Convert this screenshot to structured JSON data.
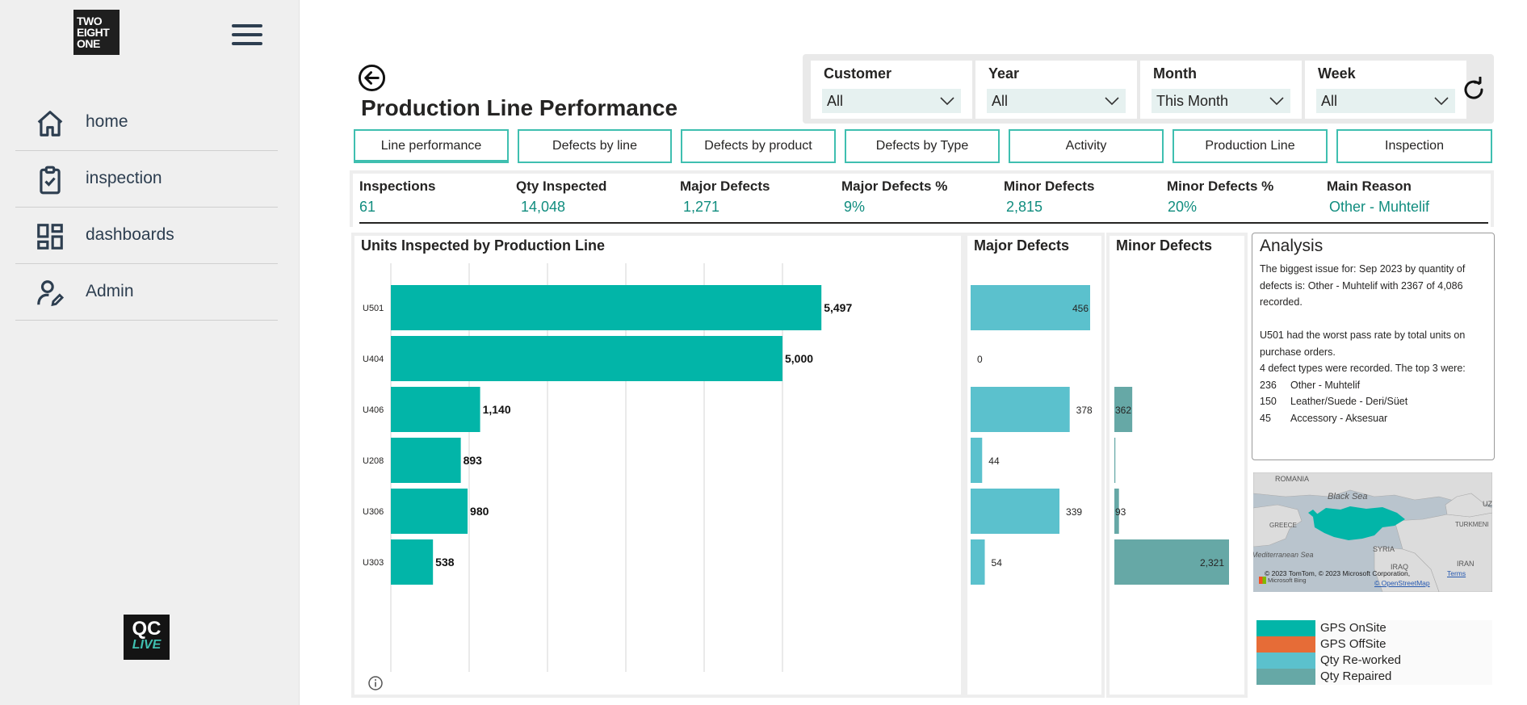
{
  "sidebar": {
    "logo_lines": [
      "TWO",
      "EIGHT",
      "ONE"
    ],
    "items": [
      {
        "label": "home",
        "icon": "home-icon"
      },
      {
        "label": "inspection",
        "icon": "clipboard-check-icon"
      },
      {
        "label": "dashboards",
        "icon": "dashboard-icon"
      },
      {
        "label": "Admin",
        "icon": "user-edit-icon"
      }
    ],
    "bottom_logo": {
      "top": "QC",
      "bottom": "LIVE"
    }
  },
  "header": {
    "title": "Production Line Performance"
  },
  "filters": [
    {
      "label": "Customer",
      "value": "All"
    },
    {
      "label": "Year",
      "value": "All"
    },
    {
      "label": "Month",
      "value": "This Month"
    },
    {
      "label": "Week",
      "value": "All"
    }
  ],
  "tabs": [
    {
      "label": "Line performance",
      "active": true
    },
    {
      "label": "Defects by line",
      "active": false
    },
    {
      "label": "Defects by product",
      "active": false
    },
    {
      "label": "Defects by Type",
      "active": false
    },
    {
      "label": "Activity",
      "active": false
    },
    {
      "label": "Production Line",
      "active": false
    },
    {
      "label": "Inspection",
      "active": false
    }
  ],
  "kpis": [
    {
      "title": "Inspections",
      "value": "61"
    },
    {
      "title": "Qty Inspected",
      "value": "14,048"
    },
    {
      "title": "Major Defects",
      "value": "1,271"
    },
    {
      "title": "Major Defects %",
      "value": "9%"
    },
    {
      "title": "Minor Defects",
      "value": "2,815"
    },
    {
      "title": "Minor Defects %",
      "value": "20%"
    },
    {
      "title": "Main Reason",
      "value": "Other - Muhtelif"
    }
  ],
  "panels": {
    "units_title": "Units Inspected by Production Line",
    "major_title": "Major Defects",
    "minor_title": "Minor Defects"
  },
  "chart_data": [
    {
      "type": "bar",
      "orientation": "horizontal",
      "title": "Units Inspected by Production Line",
      "categories": [
        "U501",
        "U404",
        "U406",
        "U208",
        "U306",
        "U303"
      ],
      "values": [
        5497,
        5000,
        1140,
        893,
        980,
        538
      ],
      "labels": [
        "5,497",
        "5,000",
        "1,140",
        "893",
        "980",
        "538"
      ],
      "xlim": [
        0,
        6000
      ],
      "grid": true,
      "color": "#02b5a8"
    },
    {
      "type": "bar",
      "orientation": "horizontal",
      "title": "Major Defects",
      "categories": [
        "U501",
        "U404",
        "U406",
        "U208",
        "U306",
        "U303"
      ],
      "values": [
        456,
        0,
        378,
        44,
        339,
        54
      ],
      "labels": [
        "456",
        "0",
        "378",
        "44",
        "339",
        "54"
      ],
      "xlim": [
        0,
        456
      ],
      "color": "#5bc1cd"
    },
    {
      "type": "bar",
      "orientation": "horizontal",
      "title": "Minor Defects",
      "categories": [
        "U501",
        "U404",
        "U406",
        "U208",
        "U306",
        "U303"
      ],
      "values": [
        0,
        0,
        362,
        20,
        93,
        2321
      ],
      "labels": [
        "",
        "",
        "362",
        "",
        "93",
        "2,321"
      ],
      "xlim": [
        0,
        2321
      ],
      "color": "#66a8a6"
    }
  ],
  "analysis": {
    "title": "Analysis",
    "lines": [
      "The biggest issue  for: Sep 2023 by quantity of",
      "defects is: Other - Muhtelif with 2367 of 4,086",
      "recorded.",
      "",
      "U501 had the worst pass rate by total units on",
      "purchase orders.",
      "4 defect types were recorded. The top 3 were:"
    ],
    "top": [
      {
        "num": "236",
        "label": "Other - Muhtelif"
      },
      {
        "num": "150",
        "label": "Leather/Suede - Deri/Süet"
      },
      {
        "num": "45",
        "label": "Accessory - Aksesuar"
      }
    ]
  },
  "map": {
    "labels": [
      "ROMANIA",
      "Black Sea",
      "GREECE",
      "SYRIA",
      "Mediterranean Sea",
      "IRAN",
      "TURKMENI",
      "UZ",
      "IRAQ"
    ],
    "attribution": "© 2023 TomTom, © 2023 Microsoft Corporation,",
    "terms": "Terms",
    "bing": "Microsoft Bing",
    "osm": "© OpenStreetMap"
  },
  "legend": [
    {
      "label": "GPS OnSite",
      "color": "#02b5a8"
    },
    {
      "label": "GPS OffSite",
      "color": "#e66c37"
    },
    {
      "label": "Qty Re-worked",
      "color": "#5bc1cd"
    },
    {
      "label": "Qty Repaired",
      "color": "#66a8a6"
    }
  ]
}
